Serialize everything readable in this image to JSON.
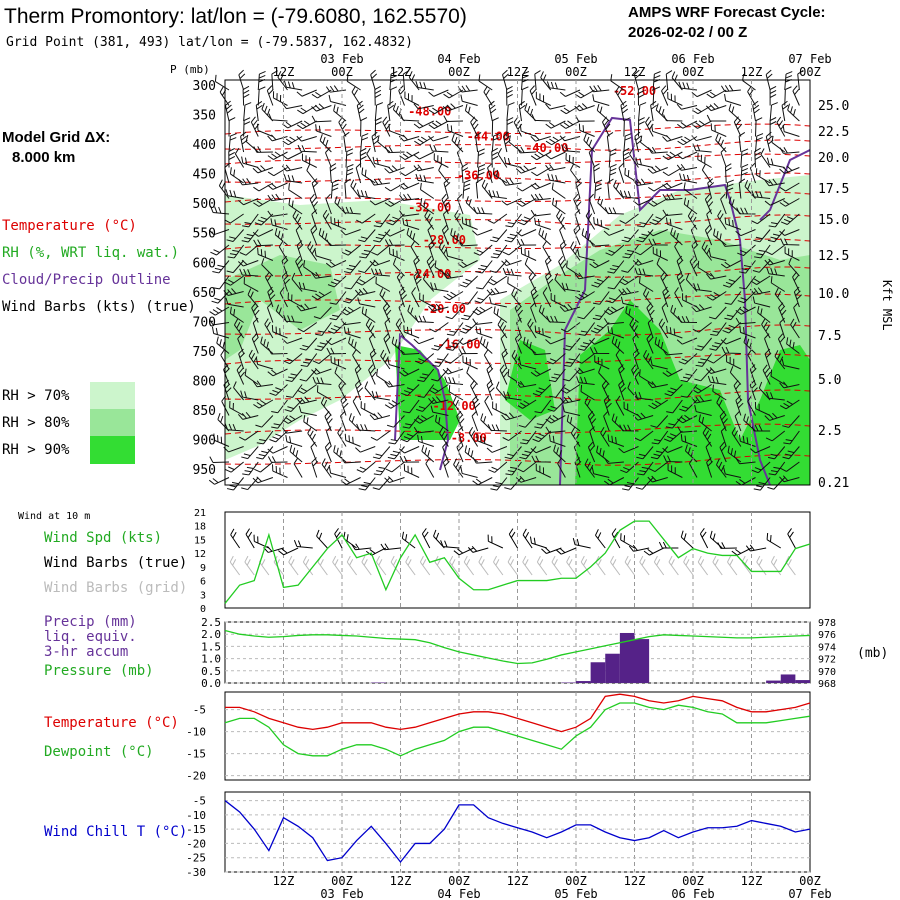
{
  "header": {
    "title": "Therm Promontory:  lat/lon = (-79.6080, 162.5570)",
    "grid_point": "Grid Point (381, 493) lat/lon = (-79.5837, 162.4832)",
    "cycle_line1": "AMPS WRF Forecast Cycle:",
    "cycle_line2": "2026-02-02 / 00  Z"
  },
  "sidebar": {
    "model_grid_label": "Model Grid ΔX:",
    "model_grid_value": "8.000 km",
    "legend_temperature": "Temperature (°C)",
    "legend_rh": "RH (%, WRT liq. wat.)",
    "legend_cloud": "Cloud/Precip Outline",
    "legend_wind": "Wind Barbs (kts) (true)",
    "rh_levels": [
      "RH > 70%",
      "RH > 80%",
      "RH > 90%"
    ],
    "wind10m_title": "Wind at 10 m",
    "label_wind_spd": "Wind Spd (kts)",
    "label_barbs_true": "Wind Barbs (true)",
    "label_barbs_grid": "Wind Barbs (grid)",
    "label_precip1": "Precip (mm)",
    "label_precip2": "liq. equiv.",
    "label_precip3": "3-hr accum",
    "label_pressure": "Pressure (mb)",
    "label_temp": "Temperature (°C)",
    "label_dew": "Dewpoint (°C)",
    "label_windchill": "Wind Chill T (°C)"
  },
  "colors": {
    "rh70": "#ccf5cc",
    "rh80": "#99e699",
    "rh90": "#33dd33",
    "temperature": "#dd0000",
    "dewpoint": "#22cc22",
    "cloud": "#663399",
    "wind_chill": "#0000cc",
    "precip_bar": "#552288",
    "grid_barb": "#bbbbbb"
  },
  "chart_data": [
    {
      "type": "heatmap",
      "name": "cross-section",
      "y_axis_label": "P (mb)",
      "pressure_ticks": [
        300,
        350,
        400,
        450,
        500,
        550,
        600,
        650,
        700,
        750,
        800,
        850,
        900,
        950
      ],
      "right_axis_label": "Kft MSL",
      "height_ticks": [
        "25.0",
        "22.5",
        "20.0",
        "17.5",
        "15.0",
        "12.5",
        "10.0",
        "7.5",
        "5.0",
        "2.5",
        "0.21"
      ],
      "time_hours": [
        0,
        120
      ],
      "hour_labels": [
        "12Z",
        "00Z",
        "12Z",
        "00Z",
        "12Z",
        "00Z",
        "12Z",
        "00Z",
        "12Z",
        "00Z"
      ],
      "hour_positions": [
        12,
        24,
        36,
        48,
        60,
        72,
        84,
        96,
        108,
        120
      ],
      "date_labels": [
        "03 Feb",
        "04 Feb",
        "05 Feb",
        "06 Feb",
        "07 Feb"
      ],
      "date_positions": [
        24,
        48,
        72,
        96,
        120
      ],
      "temp_contour_labels": [
        {
          "text": "-48.00",
          "t": 42,
          "p": 350
        },
        {
          "text": "-52.00",
          "t": 84,
          "p": 315
        },
        {
          "text": "-44.00",
          "t": 54,
          "p": 392
        },
        {
          "text": "-40.00",
          "t": 66,
          "p": 412
        },
        {
          "text": "-36.00",
          "t": 52,
          "p": 458
        },
        {
          "text": "-32.00",
          "t": 42,
          "p": 512
        },
        {
          "text": "-28.00",
          "t": 45,
          "p": 567
        },
        {
          "text": "-24.00",
          "t": 42,
          "p": 625
        },
        {
          "text": "-20.00",
          "t": 45,
          "p": 684
        },
        {
          "text": "-16.00",
          "t": 48,
          "p": 744
        },
        {
          "text": "-12.00",
          "t": 47,
          "p": 848
        },
        {
          "text": "-8.00",
          "t": 50,
          "p": 902
        }
      ]
    },
    {
      "type": "line",
      "name": "wind-speed-10m",
      "yticks": [
        0,
        3,
        6,
        9,
        12,
        15,
        18,
        21
      ],
      "ylim": [
        0,
        21
      ],
      "x": [
        0,
        3,
        6,
        9,
        12,
        15,
        18,
        21,
        24,
        27,
        30,
        33,
        36,
        39,
        42,
        45,
        48,
        51,
        54,
        57,
        60,
        63,
        66,
        69,
        72,
        75,
        78,
        81,
        84,
        87,
        90,
        93,
        96,
        99,
        102,
        105,
        108,
        111,
        114,
        117,
        120
      ],
      "series": [
        {
          "values": [
            1,
            5,
            6,
            16,
            4.5,
            5,
            9,
            13,
            16,
            11,
            12,
            4,
            11,
            16,
            10,
            11,
            6.5,
            4,
            4,
            5,
            6,
            6,
            6,
            6.5,
            6.5,
            9,
            12,
            17,
            19,
            19,
            15,
            11,
            13,
            12,
            11.5,
            11.5,
            8,
            8,
            8,
            13,
            14
          ]
        }
      ]
    },
    {
      "type": "bar",
      "name": "precip-pressure",
      "yticks_left": [
        0.0,
        0.5,
        1.0,
        1.5,
        2.0,
        2.5
      ],
      "ylim_left": [
        0,
        2.5
      ],
      "yticks_right": [
        968,
        970,
        972,
        974,
        976,
        978
      ],
      "ylim_right": [
        968,
        978
      ],
      "precip": [
        {
          "t": 33,
          "v": 0.02
        },
        {
          "t": 72,
          "v": 0.02
        },
        {
          "t": 75,
          "v": 0.08
        },
        {
          "t": 78,
          "v": 0.85
        },
        {
          "t": 81,
          "v": 1.2
        },
        {
          "t": 84,
          "v": 2.05
        },
        {
          "t": 87,
          "v": 1.8
        },
        {
          "t": 114,
          "v": 0.1
        },
        {
          "t": 117,
          "v": 0.35
        },
        {
          "t": 120,
          "v": 0.12
        }
      ],
      "pressure": [
        976.6,
        976.0,
        975.7,
        975.5,
        975.6,
        975.8,
        975.9,
        975.9,
        975.8,
        975.7,
        975.5,
        975.3,
        975.2,
        975.1,
        974.6,
        973.8,
        973.1,
        972.6,
        972.1,
        971.6,
        971.2,
        971.3,
        971.9,
        972.6,
        973.1,
        973.6,
        974.1,
        974.6,
        975.1,
        975.6,
        975.9,
        975.8,
        975.7,
        975.6,
        975.5,
        975.4,
        975.4,
        975.5,
        975.6,
        975.7,
        975.8
      ]
    },
    {
      "type": "line",
      "name": "temperature-dewpoint",
      "yticks": [
        -5,
        -10,
        -15,
        -20
      ],
      "ylim": [
        -21,
        -1
      ],
      "series": [
        {
          "name": "Temperature (°C)",
          "values": [
            -4.5,
            -4.5,
            -5.5,
            -7,
            -8,
            -9,
            -9.5,
            -9,
            -8,
            -8,
            -8,
            -9,
            -9.5,
            -9,
            -8,
            -7,
            -6,
            -5.5,
            -5.5,
            -6,
            -7,
            -8,
            -9,
            -10,
            -9,
            -7,
            -2,
            -1.5,
            -2,
            -3,
            -3.5,
            -3,
            -2,
            -2.5,
            -3,
            -4.5,
            -5.5,
            -5.5,
            -5,
            -4.5,
            -3.5
          ]
        },
        {
          "name": "Dewpoint (°C)",
          "values": [
            -8,
            -7,
            -7,
            -9,
            -13,
            -15,
            -15.5,
            -15.5,
            -14,
            -13,
            -13,
            -14,
            -15.5,
            -14,
            -13,
            -12,
            -10,
            -9,
            -9,
            -10,
            -11,
            -12,
            -13,
            -14,
            -11,
            -9,
            -5,
            -3.5,
            -3.5,
            -4.5,
            -5,
            -4,
            -4.5,
            -5.5,
            -6,
            -8,
            -8,
            -8,
            -7.5,
            -7,
            -6.5
          ]
        }
      ]
    },
    {
      "type": "line",
      "name": "wind-chill",
      "yticks": [
        -5,
        -10,
        -15,
        -20,
        -25,
        -30
      ],
      "ylim": [
        -30,
        -2
      ],
      "series": [
        {
          "name": "Wind Chill T (°C)",
          "values": [
            -5,
            -9,
            -15,
            -22.5,
            -11,
            -14,
            -18,
            -26,
            -25,
            -19,
            -14,
            -20,
            -26.5,
            -20,
            -20,
            -15,
            -6.5,
            -6.5,
            -11,
            -13,
            -14.5,
            -16,
            -18,
            -16,
            -13.5,
            -13.5,
            -16,
            -18,
            -19,
            -18,
            -15.5,
            -18,
            -16,
            -14.5,
            -14.5,
            -14,
            -12,
            -13,
            -14,
            -16,
            -15
          ]
        }
      ]
    }
  ]
}
